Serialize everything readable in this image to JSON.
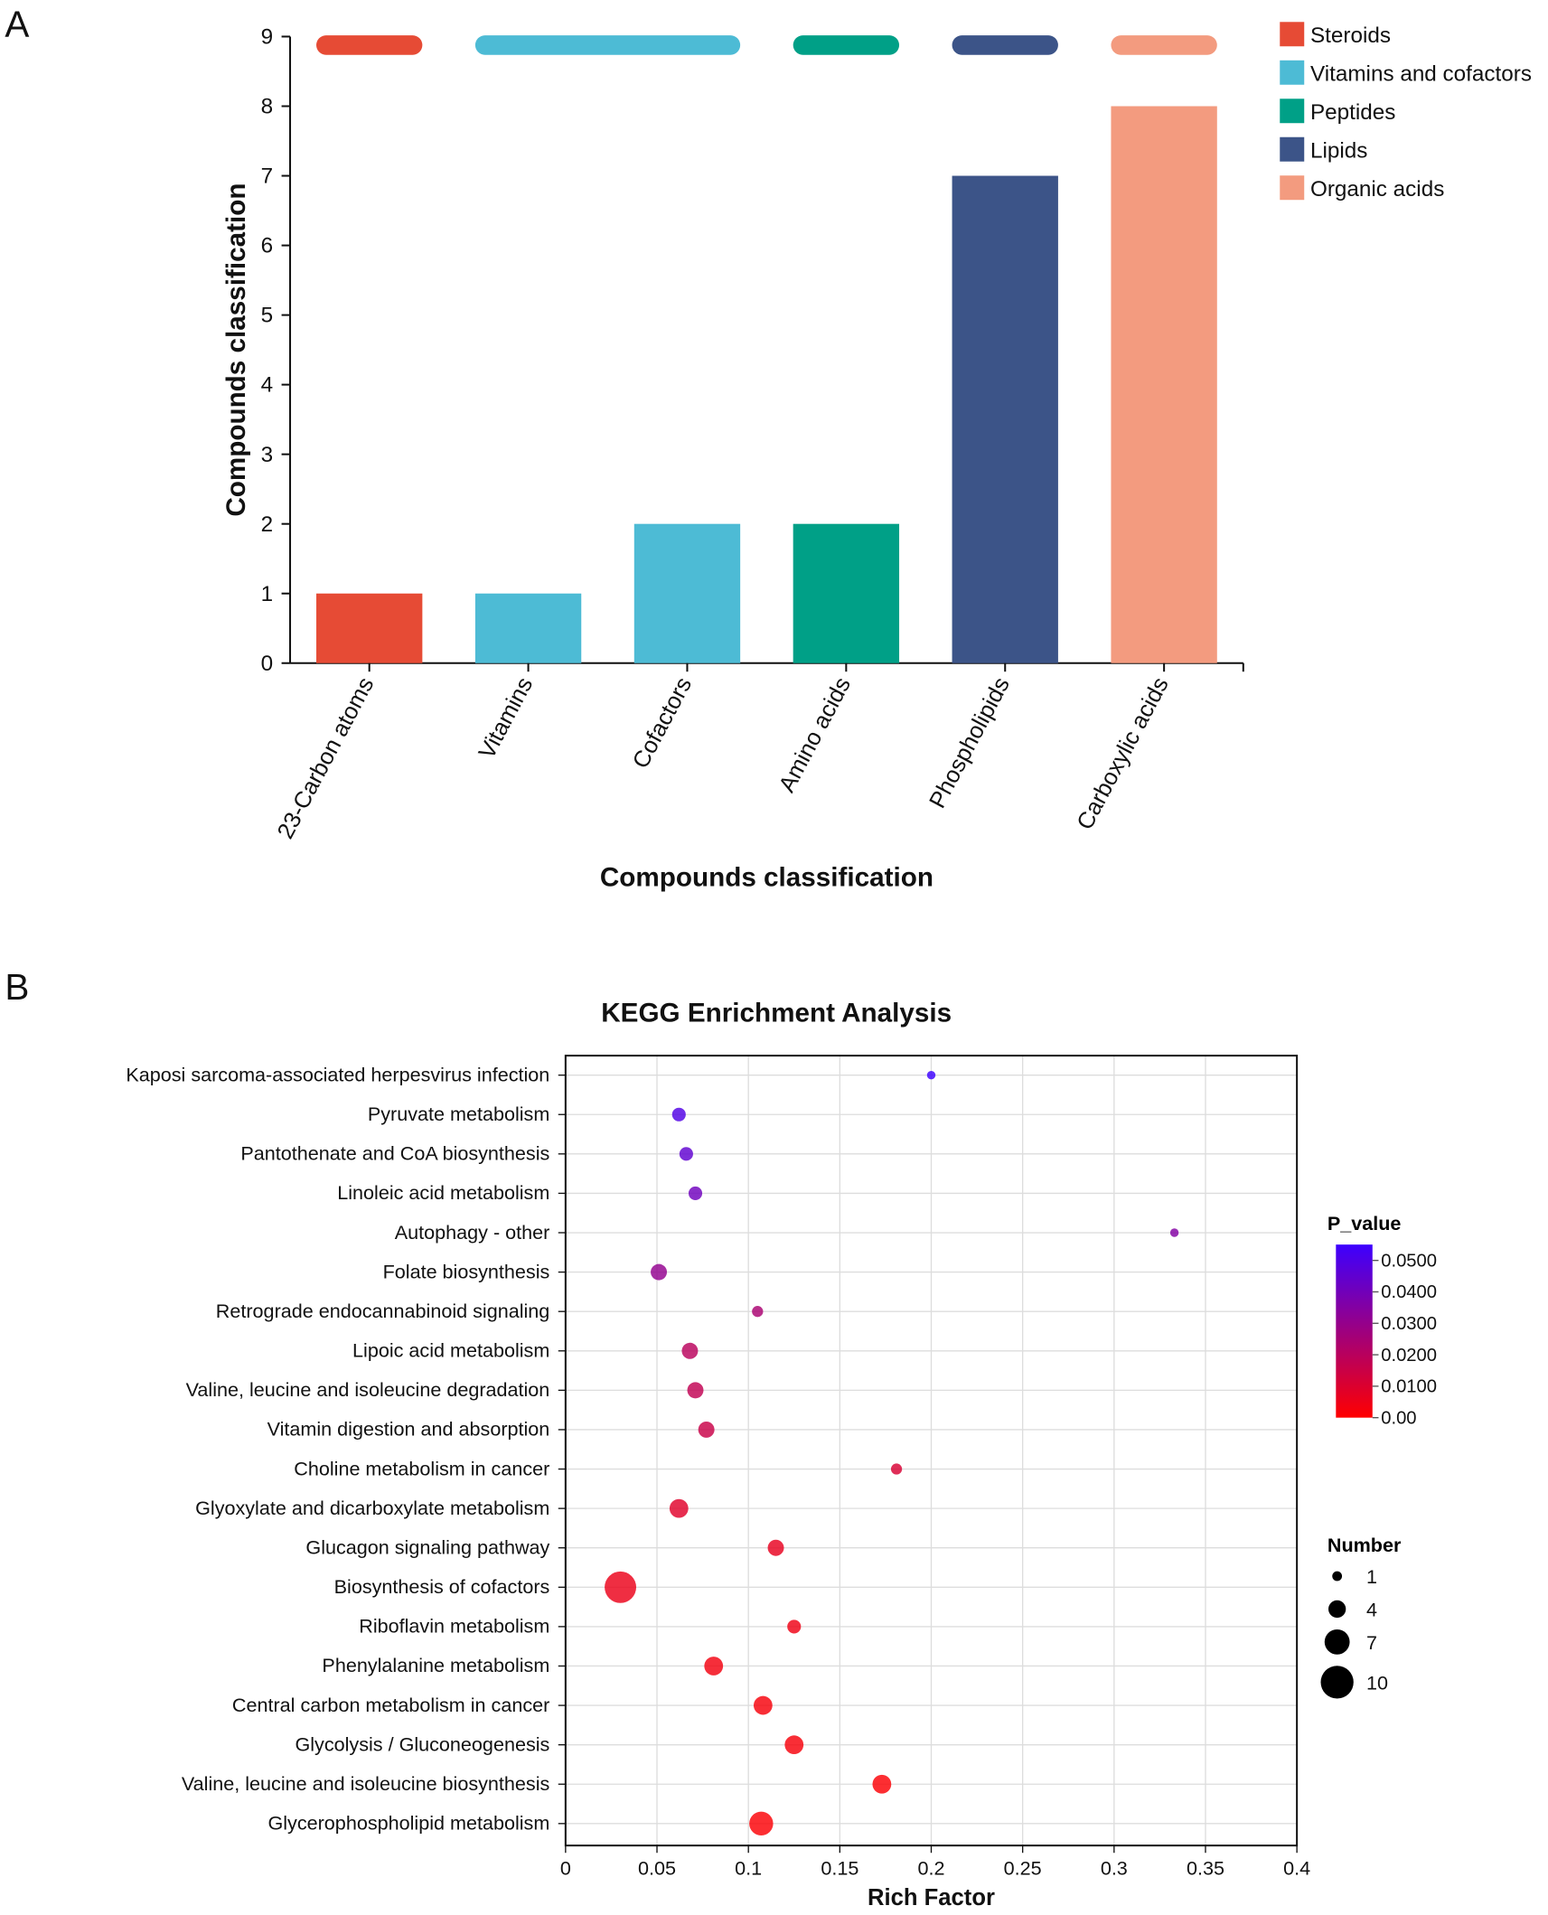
{
  "chart_data": [
    {
      "panel_label": "A",
      "type": "bar",
      "title": "",
      "xlabel": "Compounds classification",
      "ylabel": "Compounds classification",
      "ylim": [
        0,
        9
      ],
      "yticks": [
        "0",
        "1",
        "2",
        "3",
        "4",
        "5",
        "6",
        "7",
        "8",
        "9"
      ],
      "categories": [
        "23-Carbon atoms",
        "Vitamins",
        "Cofactors",
        "Amino acids",
        "Phospholipids",
        "Carboxylic acids"
      ],
      "values": [
        1,
        1,
        2,
        2,
        7,
        8
      ],
      "groups": [
        "Steroids",
        "Vitamins and cofactors",
        "Vitamins and cofactors",
        "Peptides",
        "Lipids",
        "Organic acids"
      ],
      "legend": [
        {
          "name": "Steroids",
          "color": "#E64B35"
        },
        {
          "name": "Vitamins and cofactors",
          "color": "#4DBBD5"
        },
        {
          "name": "Peptides",
          "color": "#00A087"
        },
        {
          "name": "Lipids",
          "color": "#3C5488"
        },
        {
          "name": "Organic acids",
          "color": "#F39B7F"
        }
      ],
      "legend_position": "top-right"
    },
    {
      "panel_label": "B",
      "type": "scatter",
      "title": "KEGG Enrichment Analysis",
      "xlabel": "Rich Factor",
      "xlim": [
        0,
        0.4
      ],
      "xticks": [
        "0",
        "0.05",
        "0.1",
        "0.15",
        "0.2",
        "0.25",
        "0.3",
        "0.35",
        "0.4"
      ],
      "grid": true,
      "points": [
        {
          "pathway": "Kaposi sarcoma-associated herpesvirus infection",
          "rich_factor": 0.2,
          "number": 1,
          "p_value": 0.05
        },
        {
          "pathway": "Pyruvate metabolism",
          "rich_factor": 0.062,
          "number": 3,
          "p_value": 0.045
        },
        {
          "pathway": "Pantothenate and CoA biosynthesis",
          "rich_factor": 0.066,
          "number": 3,
          "p_value": 0.041
        },
        {
          "pathway": "Linoleic acid metabolism",
          "rich_factor": 0.071,
          "number": 3,
          "p_value": 0.037
        },
        {
          "pathway": "Autophagy - other",
          "rich_factor": 0.333,
          "number": 1,
          "p_value": 0.032
        },
        {
          "pathway": "Folate biosynthesis",
          "rich_factor": 0.051,
          "number": 4,
          "p_value": 0.028
        },
        {
          "pathway": "Retrograde endocannabinoid signaling",
          "rich_factor": 0.105,
          "number": 2,
          "p_value": 0.022
        },
        {
          "pathway": "Lipoic acid metabolism",
          "rich_factor": 0.068,
          "number": 4,
          "p_value": 0.018
        },
        {
          "pathway": "Valine, leucine and isoleucine degradation",
          "rich_factor": 0.071,
          "number": 4,
          "p_value": 0.016
        },
        {
          "pathway": "Vitamin digestion and absorption",
          "rich_factor": 0.077,
          "number": 4,
          "p_value": 0.014
        },
        {
          "pathway": "Choline metabolism in cancer",
          "rich_factor": 0.181,
          "number": 2,
          "p_value": 0.01
        },
        {
          "pathway": "Glyoxylate and dicarboxylate metabolism",
          "rich_factor": 0.062,
          "number": 5,
          "p_value": 0.008
        },
        {
          "pathway": "Glucagon signaling pathway",
          "rich_factor": 0.115,
          "number": 4,
          "p_value": 0.006
        },
        {
          "pathway": "Biosynthesis of cofactors",
          "rich_factor": 0.03,
          "number": 10,
          "p_value": 0.005
        },
        {
          "pathway": "Riboflavin metabolism",
          "rich_factor": 0.125,
          "number": 3,
          "p_value": 0.004
        },
        {
          "pathway": "Phenylalanine metabolism",
          "rich_factor": 0.081,
          "number": 5,
          "p_value": 0.003
        },
        {
          "pathway": "Central carbon metabolism in cancer",
          "rich_factor": 0.108,
          "number": 5,
          "p_value": 0.002
        },
        {
          "pathway": "Glycolysis / Gluconeogenesis",
          "rich_factor": 0.125,
          "number": 5,
          "p_value": 0.002
        },
        {
          "pathway": "Valine, leucine and isoleucine biosynthesis",
          "rich_factor": 0.173,
          "number": 5,
          "p_value": 0.001
        },
        {
          "pathway": "Glycerophospholipid metabolism",
          "rich_factor": 0.107,
          "number": 7,
          "p_value": 0.001
        }
      ],
      "color_legend": {
        "title": "P_value",
        "ticks": [
          "0.0500",
          "0.0400",
          "0.0300",
          "0.0200",
          "0.0100",
          "0.00"
        ],
        "low_color": "#FF0000",
        "high_color": "#3C00FF"
      },
      "size_legend": {
        "title": "Number",
        "values": [
          1,
          4,
          7,
          10
        ]
      }
    }
  ]
}
